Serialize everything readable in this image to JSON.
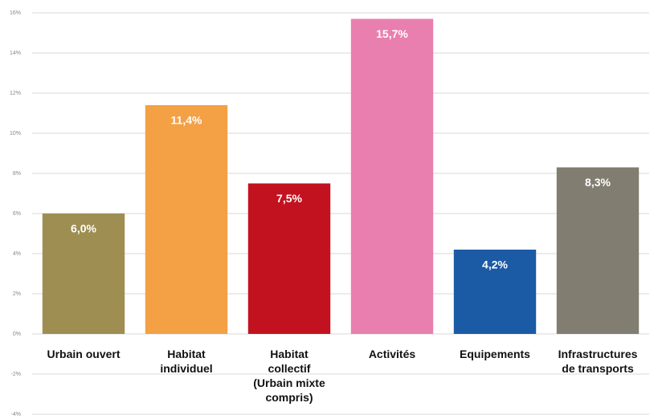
{
  "chart_data": {
    "type": "bar",
    "categories": [
      "Urbain ouvert",
      "Habitat\nindividuel",
      "Habitat\ncollectif\n(Urbain mixte\ncompris)",
      "Activités",
      "Equipements",
      "Infrastructures\nde transports"
    ],
    "values": [
      6.0,
      11.4,
      7.5,
      15.7,
      4.2,
      8.3
    ],
    "value_labels": [
      "6,0%",
      "11,4%",
      "7,5%",
      "15,7%",
      "4,2%",
      "8,3%"
    ],
    "colors": [
      "#9e8e52",
      "#f4a044",
      "#c2121f",
      "#e97fae",
      "#1b5aa5",
      "#817d71"
    ],
    "ylim": [
      -4,
      16
    ],
    "yticks": [
      {
        "value": -4,
        "label": "-4%"
      },
      {
        "value": -2,
        "label": "-2%"
      },
      {
        "value": 0,
        "label": "0%"
      },
      {
        "value": 2,
        "label": "2%"
      },
      {
        "value": 4,
        "label": "4%"
      },
      {
        "value": 6,
        "label": "6%"
      },
      {
        "value": 8,
        "label": "8%"
      },
      {
        "value": 10,
        "label": "10%"
      },
      {
        "value": 12,
        "label": "12%"
      },
      {
        "value": 14,
        "label": "14%"
      },
      {
        "value": 16,
        "label": "16%"
      }
    ],
    "grid": true
  }
}
